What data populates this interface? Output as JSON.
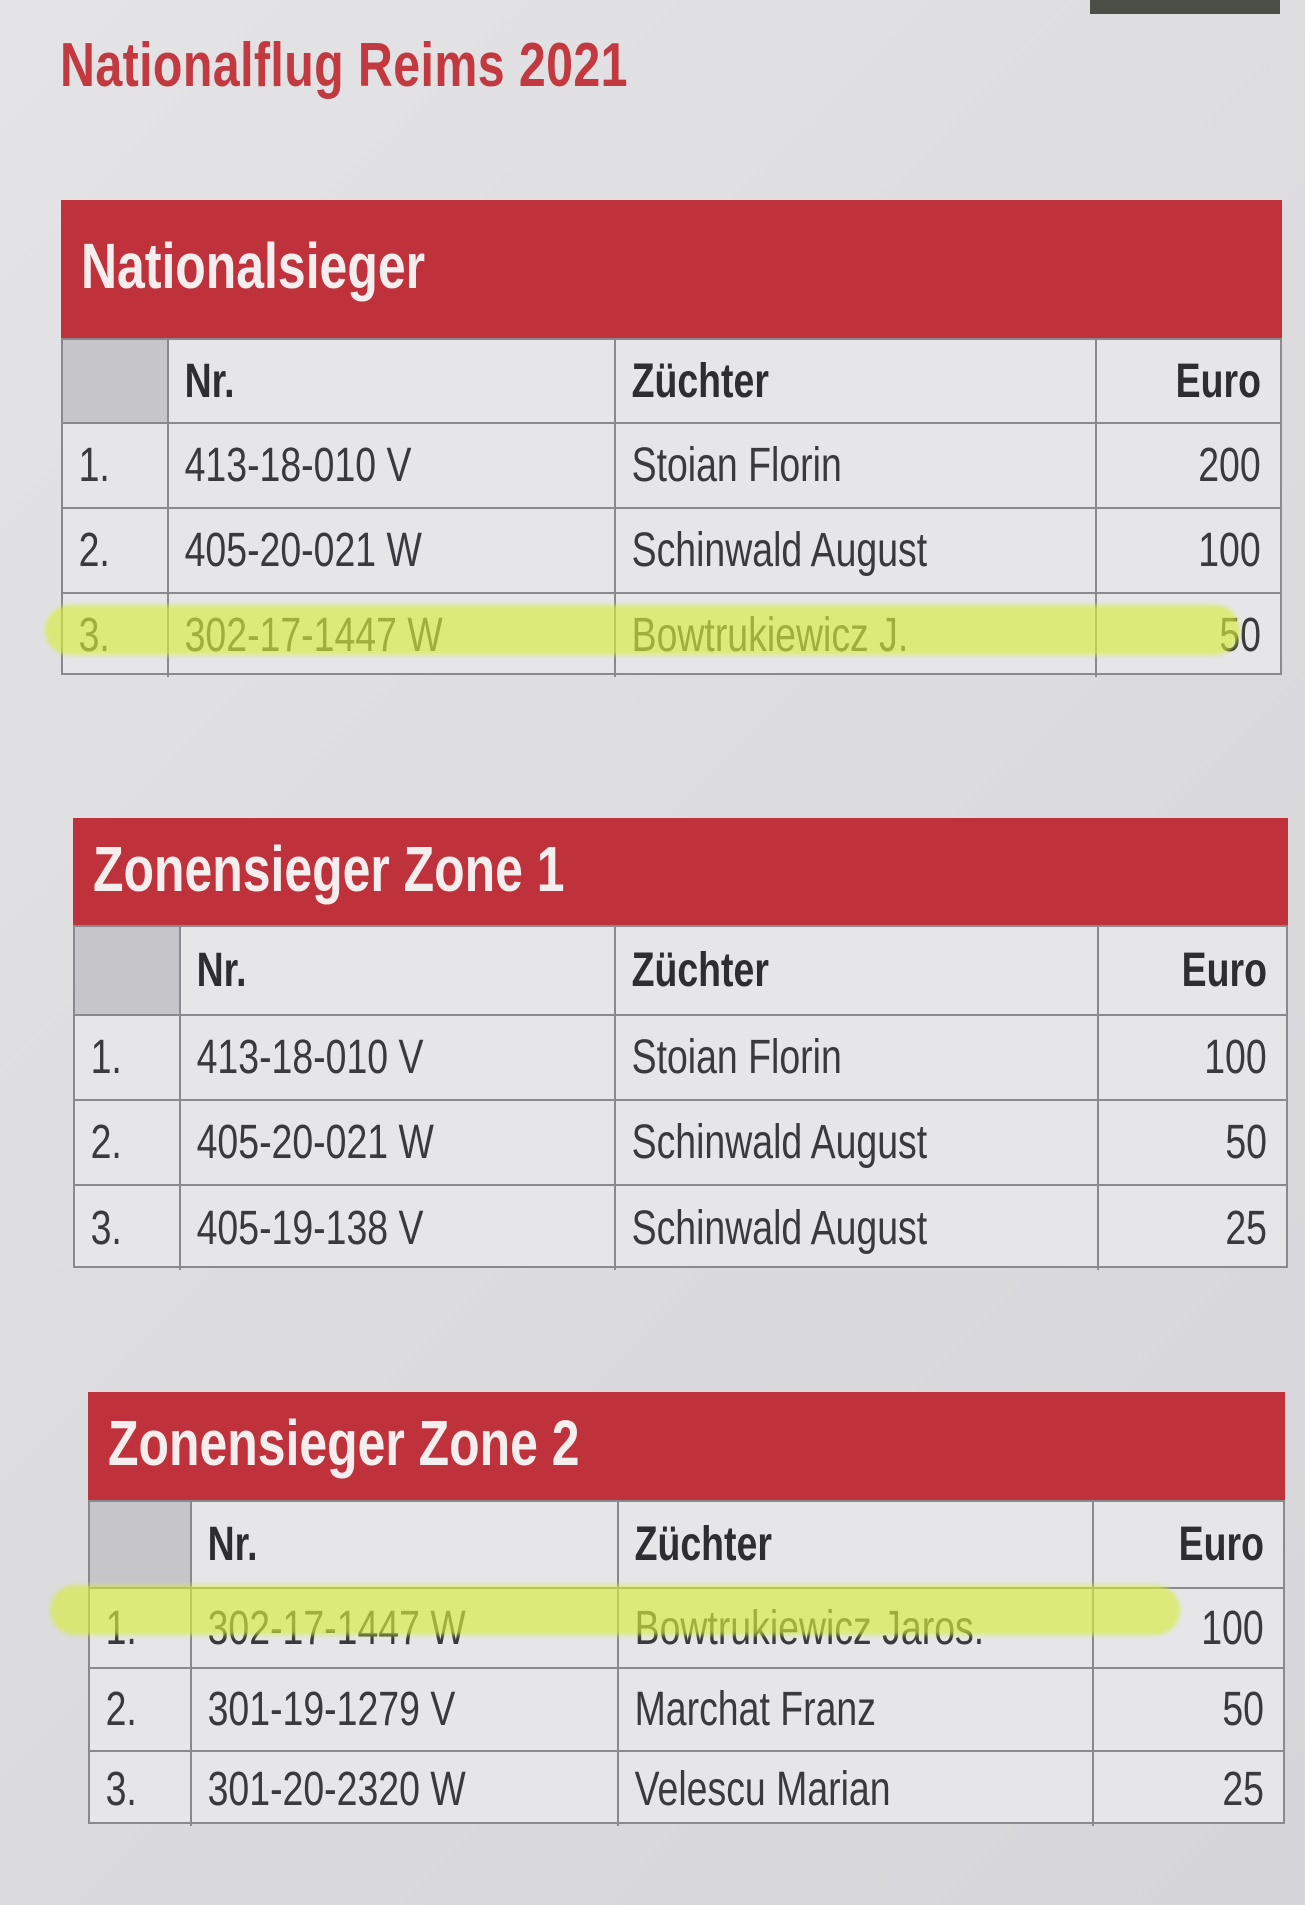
{
  "title": "Nationalflug Reims 2021",
  "highlight_color": "#d6ec3c",
  "accent_color": "#c0323b",
  "tables": [
    {
      "heading": "Nationalsieger",
      "columns": [
        "Nr.",
        "Züchter",
        "Euro"
      ],
      "rows": [
        {
          "rank": "1.",
          "nr": "413-18-010 V",
          "zuechter": "Stoian Florin",
          "euro": "200"
        },
        {
          "rank": "2.",
          "nr": "405-20-021 W",
          "zuechter": "Schinwald August",
          "euro": "100"
        },
        {
          "rank": "3.",
          "nr": "302-17-1447 W",
          "zuechter": "Bowtrukiewicz J.",
          "euro": "50",
          "highlighted": true
        }
      ]
    },
    {
      "heading": "Zonensieger Zone 1",
      "columns": [
        "Nr.",
        "Züchter",
        "Euro"
      ],
      "rows": [
        {
          "rank": "1.",
          "nr": "413-18-010 V",
          "zuechter": "Stoian Florin",
          "euro": "100"
        },
        {
          "rank": "2.",
          "nr": "405-20-021 W",
          "zuechter": "Schinwald August",
          "euro": "50"
        },
        {
          "rank": "3.",
          "nr": "405-19-138 V",
          "zuechter": "Schinwald August",
          "euro": "25"
        }
      ]
    },
    {
      "heading": "Zonensieger Zone 2",
      "columns": [
        "Nr.",
        "Züchter",
        "Euro"
      ],
      "rows": [
        {
          "rank": "1.",
          "nr": "302-17-1447 W",
          "zuechter": "Bowtrukiewicz Jaros.",
          "euro": "100",
          "highlighted": true
        },
        {
          "rank": "2.",
          "nr": "301-19-1279 V",
          "zuechter": "Marchat Franz",
          "euro": "50"
        },
        {
          "rank": "3.",
          "nr": "301-20-2320 W",
          "zuechter": "Velescu Marian",
          "euro": "25"
        }
      ]
    }
  ]
}
